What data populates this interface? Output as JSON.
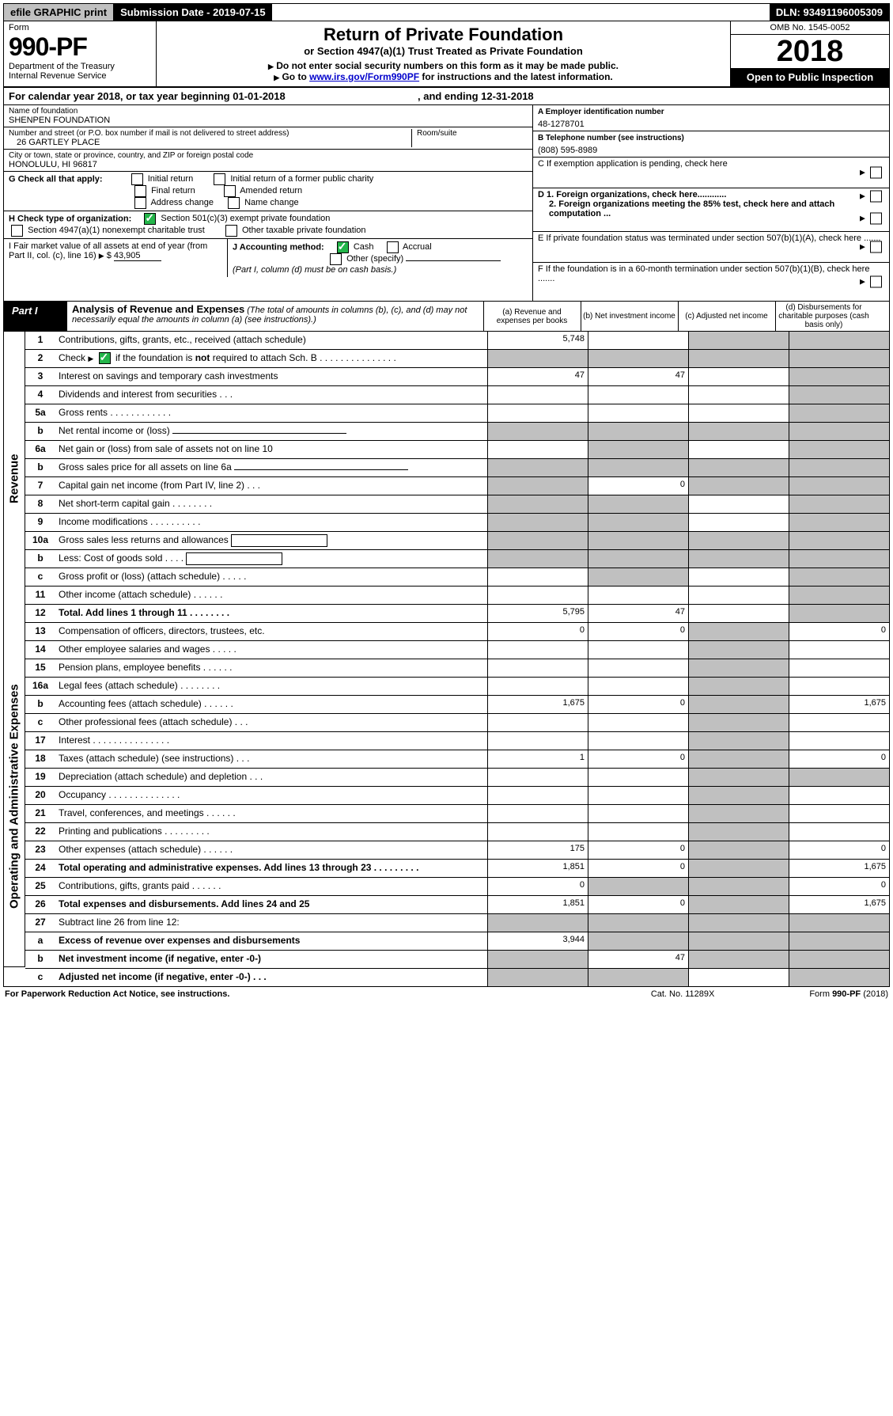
{
  "top_bar": {
    "efile": "efile GRAPHIC print",
    "submission": "Submission Date - 2019-07-15",
    "dln": "DLN: 93491196005309"
  },
  "header": {
    "form_word": "Form",
    "form_number": "990-PF",
    "dept1": "Department of the Treasury",
    "dept2": "Internal Revenue Service",
    "title": "Return of Private Foundation",
    "subtitle": "or Section 4947(a)(1) Trust Treated as Private Foundation",
    "instr1": "Do not enter social security numbers on this form as it may be made public.",
    "instr2_pre": "Go to ",
    "instr2_link": "www.irs.gov/Form990PF",
    "instr2_post": " for instructions and the latest information.",
    "omb": "OMB No. 1545-0052",
    "year": "2018",
    "open_public": "Open to Public Inspection"
  },
  "calendar": {
    "text_pre": "For calendar year 2018, or tax year beginning ",
    "begin": "01-01-2018",
    "text_mid": " , and ending ",
    "end": "12-31-2018"
  },
  "entity": {
    "name_label": "Name of foundation",
    "name": "SHENPEN FOUNDATION",
    "addr_label": "Number and street (or P.O. box number if mail is not delivered to street address)",
    "addr": "26 GARTLEY PLACE",
    "room_label": "Room/suite",
    "city_label": "City or town, state or province, country, and ZIP or foreign postal code",
    "city": "HONOLULU, HI  96817",
    "ein_label": "A Employer identification number",
    "ein": "48-1278701",
    "phone_label": "B Telephone number (see instructions)",
    "phone": "(808) 595-8989",
    "c_label": "C If exemption application is pending, check here",
    "d1": "D 1. Foreign organizations, check here............",
    "d2": "2. Foreign organizations meeting the 85% test, check here and attach computation ...",
    "e": "E  If private foundation status was terminated under section 507(b)(1)(A), check here .......",
    "f": "F  If the foundation is in a 60-month termination under section 507(b)(1)(B), check here .......",
    "g_label": "G Check all that apply:",
    "g_opts": [
      "Initial return",
      "Initial return of a former public charity",
      "Final return",
      "Amended return",
      "Address change",
      "Name change"
    ],
    "h_label": "H Check type of organization:",
    "h_opt1": "Section 501(c)(3) exempt private foundation",
    "h_opt2": "Section 4947(a)(1) nonexempt charitable trust",
    "h_opt3": "Other taxable private foundation",
    "i_label": "I Fair market value of all assets at end of year (from Part II, col. (c), line 16)",
    "i_value": "43,905",
    "j_label": "J Accounting method:",
    "j_cash": "Cash",
    "j_accrual": "Accrual",
    "j_other": "Other (specify)",
    "j_note": "(Part I, column (d) must be on cash basis.)"
  },
  "part1": {
    "label": "Part I",
    "title": "Analysis of Revenue and Expenses",
    "note": "(The total of amounts in columns (b), (c), and (d) may not necessarily equal the amounts in column (a) (see instructions).)",
    "col_a": "(a)   Revenue and expenses per books",
    "col_b": "(b)  Net investment income",
    "col_c": "(c)  Adjusted net income",
    "col_d": "(d)  Disbursements for charitable purposes (cash basis only)"
  },
  "side_labels": {
    "revenue": "Revenue",
    "expenses": "Operating and Administrative Expenses"
  },
  "rows": {
    "r1": {
      "num": "1",
      "desc": "Contributions, gifts, grants, etc., received (attach schedule)",
      "a": "5,748",
      "b": "",
      "c_shade": true,
      "d_shade": true
    },
    "r2": {
      "num": "2",
      "desc": "Check ▶ ☑ if the foundation is not required to attach Sch. B",
      "a_shade": true,
      "b_shade": true,
      "c_shade": true,
      "d_shade": true,
      "inline_check": true
    },
    "r3": {
      "num": "3",
      "desc": "Interest on savings and temporary cash investments",
      "a": "47",
      "b": "47",
      "d_shade": true
    },
    "r4": {
      "num": "4",
      "desc": "Dividends and interest from securities   .  .  .",
      "d_shade": true
    },
    "r5a": {
      "num": "5a",
      "desc": "Gross rents    .   .   .   .   .   .   .   .   .   .   .   .",
      "d_shade": true
    },
    "r5b": {
      "num": "b",
      "desc": "Net rental income or (loss)  ",
      "underline": true,
      "a_shade": true,
      "b_shade": true,
      "c_shade": true,
      "d_shade": true
    },
    "r6a": {
      "num": "6a",
      "desc": "Net gain or (loss) from sale of assets not on line 10",
      "b_shade": true,
      "d_shade": true
    },
    "r6b": {
      "num": "b",
      "desc": "Gross sales price for all assets on line 6a ",
      "underline": true,
      "a_shade": true,
      "b_shade": true,
      "c_shade": true,
      "d_shade": true
    },
    "r7": {
      "num": "7",
      "desc": "Capital gain net income (from Part IV, line 2)   .  .  .",
      "a_shade": true,
      "b": "0",
      "c_shade": true,
      "d_shade": true
    },
    "r8": {
      "num": "8",
      "desc": "Net short-term capital gain   .   .   .   .   .   .   .   .",
      "a_shade": true,
      "b_shade": true,
      "d_shade": true
    },
    "r9": {
      "num": "9",
      "desc": "Income modifications  .   .   .   .   .   .   .   .   .   .",
      "a_shade": true,
      "b_shade": true,
      "d_shade": true
    },
    "r10a": {
      "num": "10a",
      "desc": "Gross sales less returns and allowances ",
      "box": true,
      "a_shade": true,
      "b_shade": true,
      "c_shade": true,
      "d_shade": true
    },
    "r10b": {
      "num": "b",
      "desc": "Less: Cost of goods sold     .   .   .   . ",
      "box": true,
      "a_shade": true,
      "b_shade": true,
      "c_shade": true,
      "d_shade": true
    },
    "r10c": {
      "num": "c",
      "desc": "Gross profit or (loss) (attach schedule)    .   .   .   .   .",
      "b_shade": true,
      "d_shade": true
    },
    "r11": {
      "num": "11",
      "desc": "Other income (attach schedule)    .   .   .   .   .   .",
      "d_shade": true
    },
    "r12": {
      "num": "12",
      "desc": "Total. Add lines 1 through 11    .   .   .   .   .   .   .   .",
      "bold": true,
      "a": "5,795",
      "b": "47",
      "d_shade": true
    },
    "r13": {
      "num": "13",
      "desc": "Compensation of officers, directors, trustees, etc.",
      "a": "0",
      "b": "0",
      "c_shade": true,
      "d": "0"
    },
    "r14": {
      "num": "14",
      "desc": "Other employee salaries and wages    .   .   .   .   .",
      "c_shade": true
    },
    "r15": {
      "num": "15",
      "desc": "Pension plans, employee benefits   .   .   .   .   .   .",
      "c_shade": true
    },
    "r16a": {
      "num": "16a",
      "desc": "Legal fees (attach schedule)  .   .   .   .   .   .   .   .",
      "c_shade": true
    },
    "r16b": {
      "num": "b",
      "desc": "Accounting fees (attach schedule)   .   .   .   .   .   .",
      "a": "1,675",
      "b": "0",
      "c_shade": true,
      "d": "1,675"
    },
    "r16c": {
      "num": "c",
      "desc": "Other professional fees (attach schedule)    .   .   .",
      "c_shade": true
    },
    "r17": {
      "num": "17",
      "desc": "Interest  .   .   .   .   .   .   .   .   .   .   .   .   .   .   .",
      "c_shade": true
    },
    "r18": {
      "num": "18",
      "desc": "Taxes (attach schedule) (see instructions)    .   .   .",
      "a": "1",
      "b": "0",
      "c_shade": true,
      "d": "0"
    },
    "r19": {
      "num": "19",
      "desc": "Depreciation (attach schedule) and depletion    .   .   .",
      "c_shade": true,
      "d_shade": true
    },
    "r20": {
      "num": "20",
      "desc": "Occupancy  .   .   .   .   .   .   .   .   .   .   .   .   .   .",
      "c_shade": true
    },
    "r21": {
      "num": "21",
      "desc": "Travel, conferences, and meetings  .   .   .   .   .   .",
      "c_shade": true
    },
    "r22": {
      "num": "22",
      "desc": "Printing and publications  .   .   .   .   .   .   .   .   .",
      "c_shade": true
    },
    "r23": {
      "num": "23",
      "desc": "Other expenses (attach schedule)   .   .   .   .   .   .",
      "a": "175",
      "b": "0",
      "c_shade": true,
      "d": "0"
    },
    "r24": {
      "num": "24",
      "desc": "Total operating and administrative expenses. Add lines 13 through 23   .   .   .   .   .   .   .   .   .",
      "bold": true,
      "a": "1,851",
      "b": "0",
      "c_shade": true,
      "d": "1,675"
    },
    "r25": {
      "num": "25",
      "desc": "Contributions, gifts, grants paid     .   .   .   .   .   .",
      "a": "0",
      "b_shade": true,
      "c_shade": true,
      "d": "0"
    },
    "r26": {
      "num": "26",
      "desc": "Total expenses and disbursements. Add lines 24 and 25",
      "bold": true,
      "a": "1,851",
      "b": "0",
      "c_shade": true,
      "d": "1,675"
    },
    "r27": {
      "num": "27",
      "desc": "Subtract line 26 from line 12:",
      "a_shade": true,
      "b_shade": true,
      "c_shade": true,
      "d_shade": true
    },
    "r27a": {
      "num": "a",
      "desc": "Excess of revenue over expenses and disbursements",
      "bold": true,
      "a": "3,944",
      "b_shade": true,
      "c_shade": true,
      "d_shade": true
    },
    "r27b": {
      "num": "b",
      "desc": "Net investment income (if negative, enter -0-)",
      "bold": true,
      "a_shade": true,
      "b": "47",
      "c_shade": true,
      "d_shade": true
    },
    "r27c": {
      "num": "c",
      "desc": "Adjusted net income (if negative, enter -0-)   .   .   .",
      "bold": true,
      "a_shade": true,
      "b_shade": true,
      "d_shade": true
    }
  },
  "footer": {
    "left": "For Paperwork Reduction Act Notice, see instructions.",
    "mid": "Cat. No. 11289X",
    "right": "Form 990-PF (2018)"
  }
}
